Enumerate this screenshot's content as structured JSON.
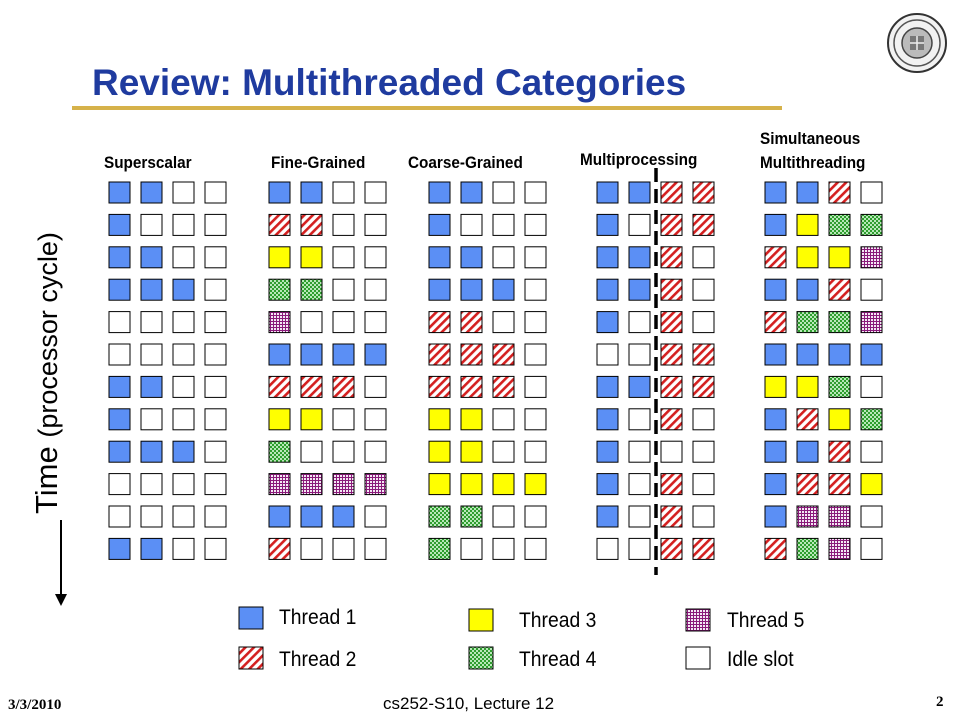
{
  "title": "Review: Multithreaded Categories",
  "axis_label": "Time",
  "axis_label_unit": "(processor cycle)",
  "columns": [
    {
      "title_lines": [
        "Superscalar"
      ],
      "rows": [
        "1100",
        "1000",
        "1100",
        "1110",
        "0000",
        "0000",
        "1100",
        "1000",
        "1110",
        "0000",
        "0000",
        "1100"
      ]
    },
    {
      "title_lines": [
        "Fine-Grained"
      ],
      "rows": [
        "1100",
        "2200",
        "3300",
        "4400",
        "5000",
        "1111",
        "2220",
        "3300",
        "4000",
        "5555",
        "1110",
        "2000"
      ]
    },
    {
      "title_lines": [
        "Coarse-Grained"
      ],
      "rows": [
        "1100",
        "1000",
        "1100",
        "1110",
        "2200",
        "2220",
        "2220",
        "3300",
        "3300",
        "3333",
        "4400",
        "4000"
      ]
    },
    {
      "title_lines": [
        "Multiprocessing"
      ],
      "rows": [
        "1122",
        "1022",
        "1120",
        "1120",
        "1020",
        "0022",
        "1122",
        "1020",
        "1000",
        "1020",
        "1020",
        "0022"
      ]
    },
    {
      "title_lines": [
        "Simultaneous",
        "Multithreading"
      ],
      "rows": [
        "1120",
        "1344",
        "2335",
        "1120",
        "2445",
        "1111",
        "3340",
        "1234",
        "1120",
        "1223",
        "1550",
        "2450"
      ]
    }
  ],
  "legend": [
    {
      "pattern": "1",
      "label": "Thread 1"
    },
    {
      "pattern": "2",
      "label": "Thread 2"
    },
    {
      "pattern": "3",
      "label": "Thread 3"
    },
    {
      "pattern": "4",
      "label": "Thread 4"
    },
    {
      "pattern": "5",
      "label": "Thread 5"
    },
    {
      "pattern": "0",
      "label": "Idle slot"
    }
  ],
  "colors": {
    "title": "#1f3b9f",
    "thread1": "#5b8ff5",
    "thread2": "#d42020",
    "thread3": "#ffff00",
    "thread4": "#2e9e2e",
    "thread5": "#8a1a7a",
    "idle": "#ffffff",
    "accent_rule": "#d6b24a"
  },
  "footer": {
    "date": "3/3/2010",
    "course": "cs252-S10, Lecture 12",
    "page": "2"
  },
  "seal_icon": "university-seal-icon"
}
